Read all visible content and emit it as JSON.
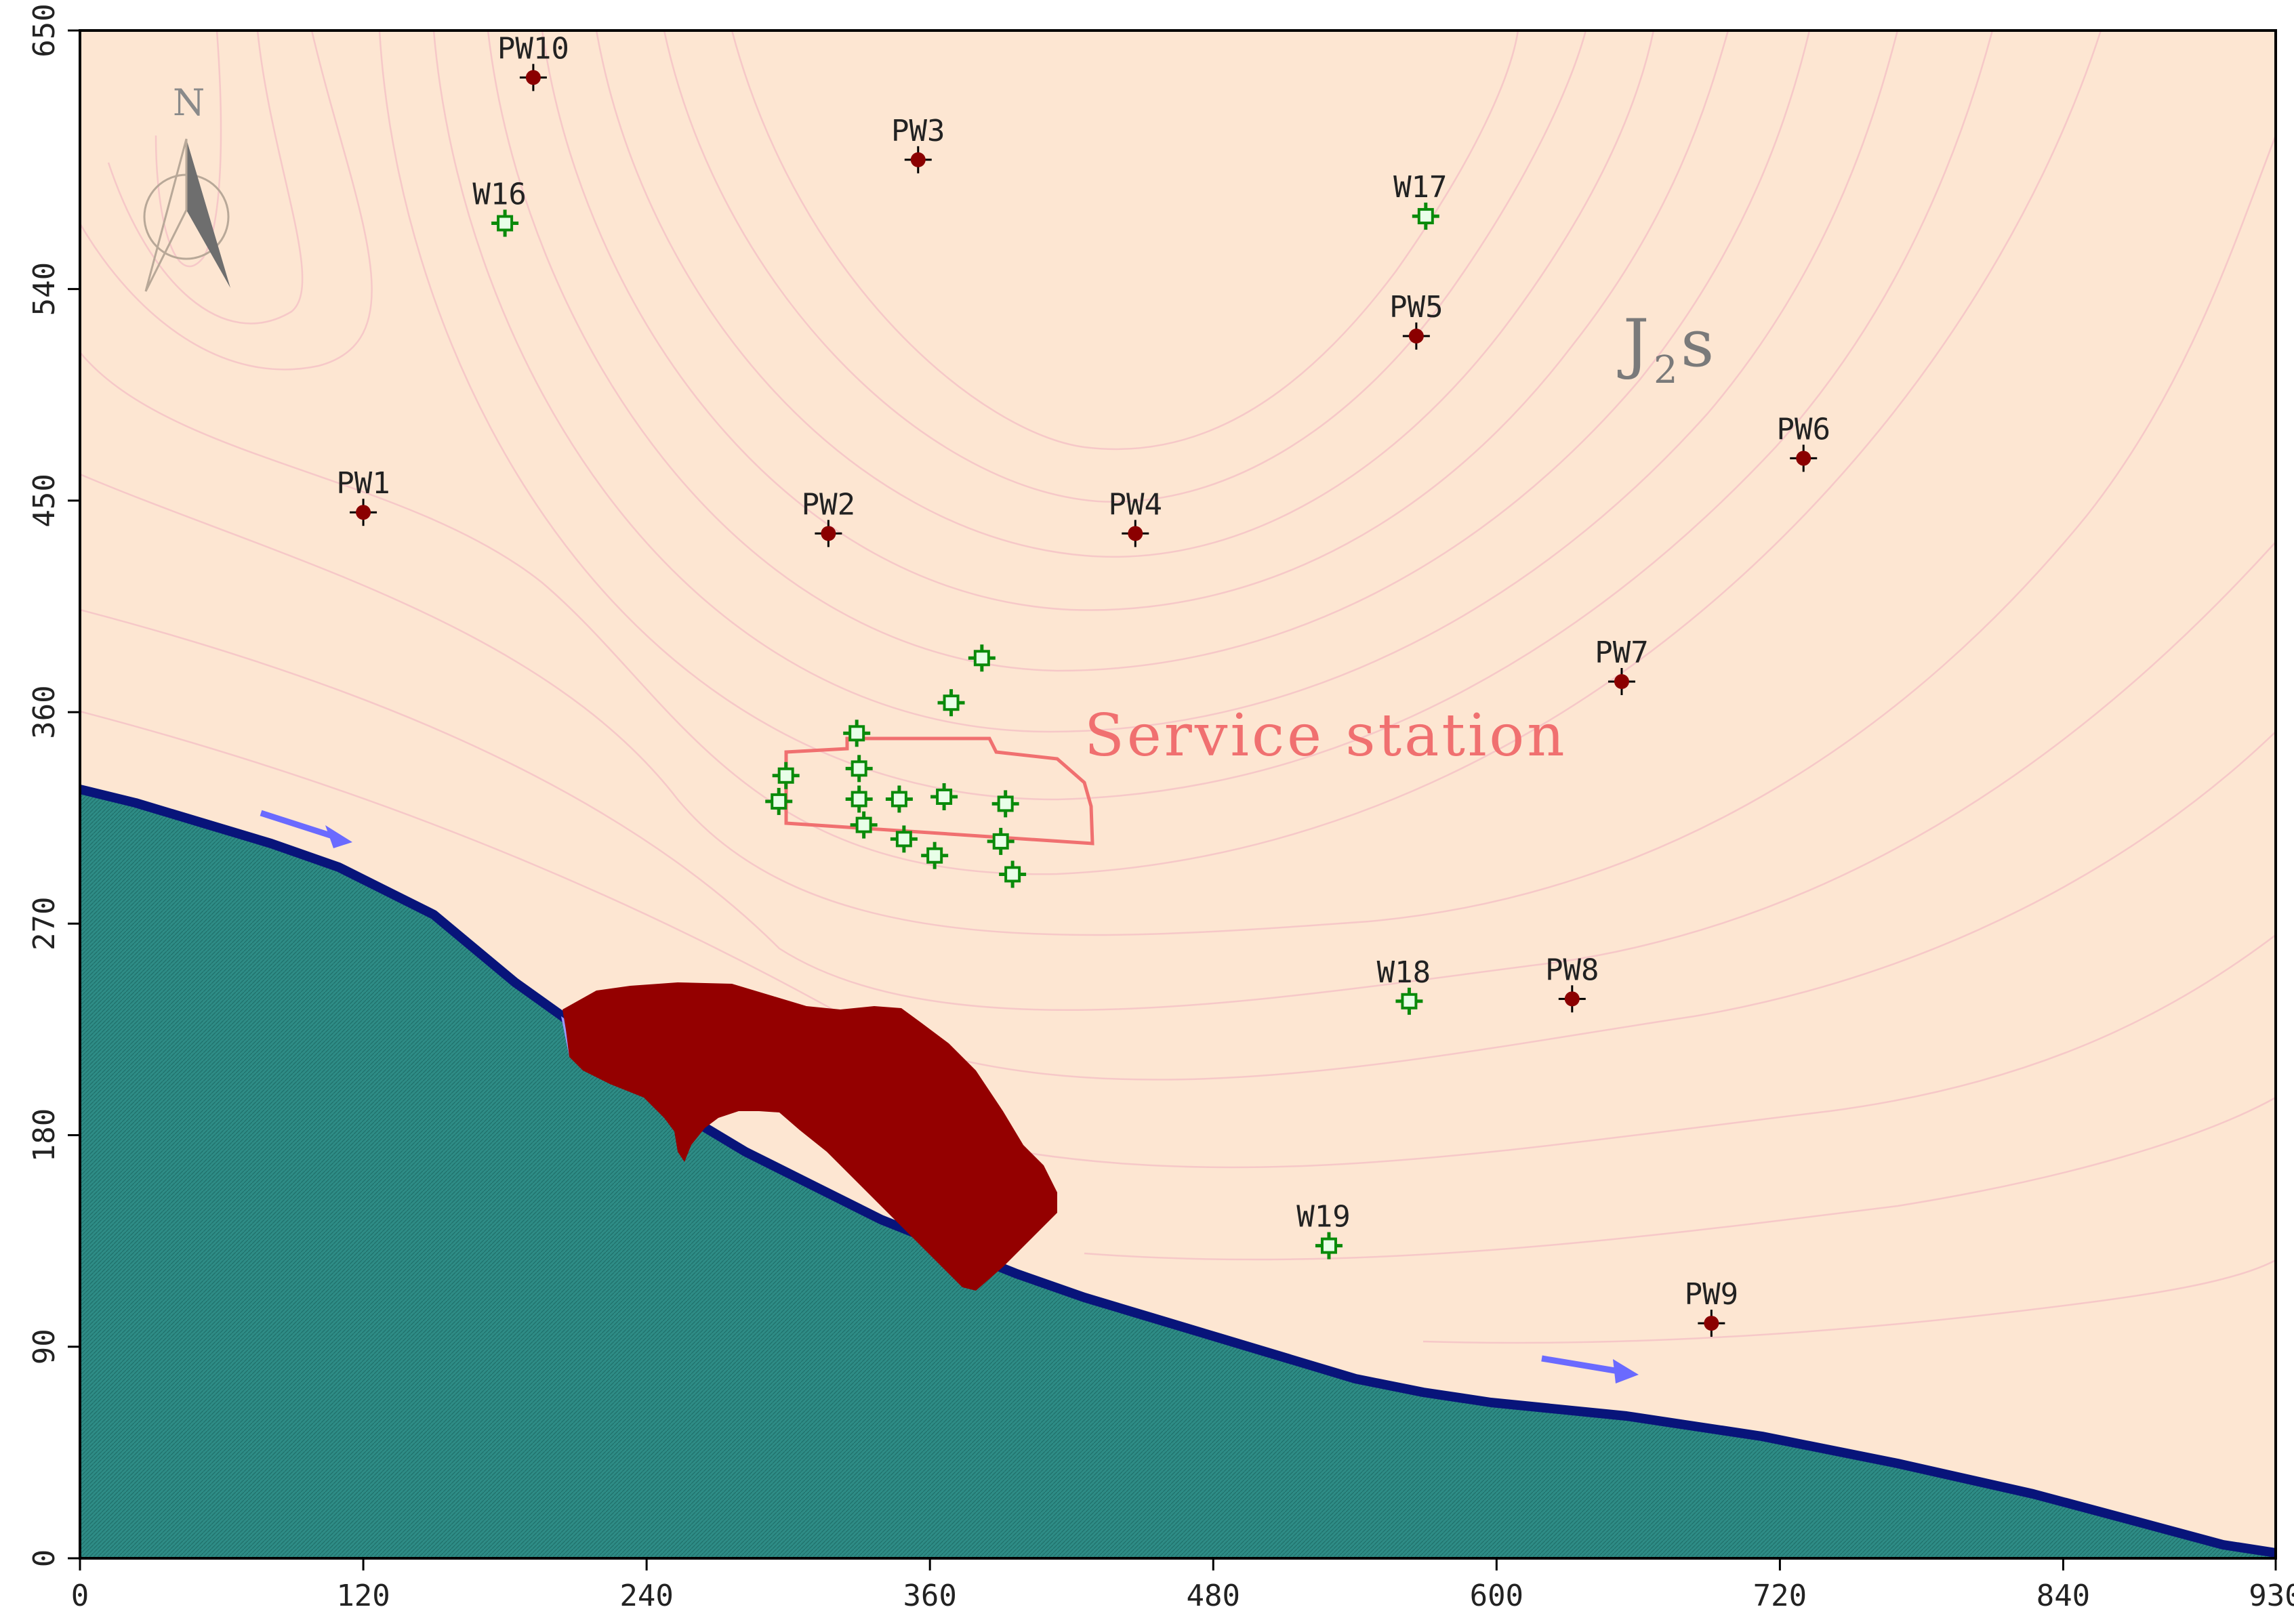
{
  "map": {
    "colors": {
      "land": "#fde6d2",
      "contour": "#f6c8c8",
      "water": "#2e8c86",
      "shore": "#08147a",
      "plume": "#940000",
      "pumping_well": "#8b0000",
      "monitoring_well": "#0a8a0a",
      "flow_arrow": "#6a6aff",
      "station_outline": "#f07070"
    },
    "x_ticks": [
      "0",
      "120",
      "240",
      "360",
      "480",
      "600",
      "720",
      "840",
      "930"
    ],
    "y_ticks": [
      "0",
      "90",
      "180",
      "270",
      "360",
      "450",
      "540",
      "650"
    ],
    "geology_label_main": "J",
    "geology_label_sub": "2",
    "geology_label_suffix": "s",
    "station_label": "Service station",
    "north_label": "N",
    "pumping_wells": [
      {
        "label": "PW10",
        "x": 192,
        "y": 630
      },
      {
        "label": "PW3",
        "x": 355,
        "y": 595
      },
      {
        "label": "PW5",
        "x": 566,
        "y": 520
      },
      {
        "label": "PW6",
        "x": 730,
        "y": 468
      },
      {
        "label": "PW1",
        "x": 120,
        "y": 445
      },
      {
        "label": "PW2",
        "x": 317,
        "y": 436
      },
      {
        "label": "PW4",
        "x": 447,
        "y": 436
      },
      {
        "label": "PW7",
        "x": 653,
        "y": 373
      },
      {
        "label": "PW8",
        "x": 632,
        "y": 238
      },
      {
        "label": "PW9",
        "x": 691,
        "y": 100
      }
    ],
    "monitoring_wells": [
      {
        "label": "W16",
        "x": 180,
        "y": 568
      },
      {
        "label": "W17",
        "x": 570,
        "y": 571
      },
      {
        "label": "W18",
        "x": 563,
        "y": 237
      },
      {
        "label": "W19",
        "x": 529,
        "y": 133
      },
      {
        "label": "",
        "x": 382,
        "y": 383
      },
      {
        "label": "",
        "x": 369,
        "y": 364
      },
      {
        "label": "",
        "x": 329,
        "y": 351
      },
      {
        "label": "",
        "x": 299,
        "y": 333
      },
      {
        "label": "",
        "x": 330,
        "y": 336
      },
      {
        "label": "",
        "x": 296,
        "y": 322
      },
      {
        "label": "",
        "x": 330,
        "y": 323
      },
      {
        "label": "",
        "x": 347,
        "y": 323
      },
      {
        "label": "",
        "x": 366,
        "y": 324
      },
      {
        "label": "",
        "x": 392,
        "y": 321
      },
      {
        "label": "",
        "x": 332,
        "y": 312
      },
      {
        "label": "",
        "x": 349,
        "y": 306
      },
      {
        "label": "",
        "x": 362,
        "y": 299
      },
      {
        "label": "",
        "x": 390,
        "y": 305
      },
      {
        "label": "",
        "x": 395,
        "y": 291
      }
    ]
  }
}
